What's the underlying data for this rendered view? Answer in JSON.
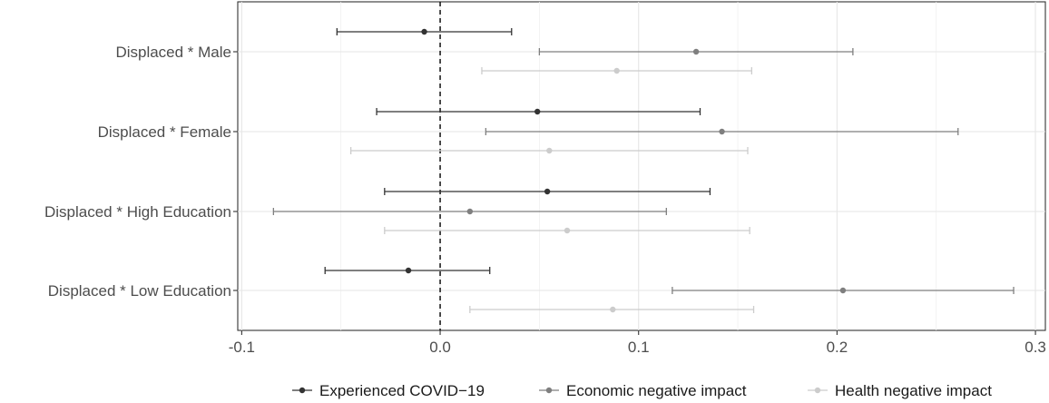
{
  "chart_data": {
    "type": "scatter",
    "orientation": "horizontal-coefficient-plot",
    "categories": [
      "Displaced * Male",
      "Displaced * Female",
      "Displaced * High Education",
      "Displaced * Low Education"
    ],
    "x_ticks": [
      -0.1,
      0,
      0.1,
      0.2,
      0.3
    ],
    "x_tick_labels": [
      "-0.1",
      "0.0",
      "0.1",
      "0.2",
      "0.3"
    ],
    "xlim": [
      -0.102,
      0.305
    ],
    "reference_line_x": 0,
    "grid": true,
    "legend_position": "bottom",
    "series": [
      {
        "name": "Experienced COVID−19",
        "color": "#333333",
        "estimates": [
          -0.008,
          0.049,
          0.054,
          -0.016
        ],
        "ci_low": [
          -0.052,
          -0.032,
          -0.028,
          -0.058
        ],
        "ci_high": [
          0.036,
          0.131,
          0.136,
          0.025
        ]
      },
      {
        "name": "Economic negative impact",
        "color": "#7f7f7f",
        "estimates": [
          0.129,
          0.142,
          0.015,
          0.203
        ],
        "ci_low": [
          0.05,
          0.023,
          -0.084,
          0.117
        ],
        "ci_high": [
          0.208,
          0.261,
          0.114,
          0.289
        ]
      },
      {
        "name": "Health negative impact",
        "color": "#cccccc",
        "estimates": [
          0.089,
          0.055,
          0.064,
          0.087
        ],
        "ci_low": [
          0.021,
          -0.045,
          -0.028,
          0.015
        ],
        "ci_high": [
          0.157,
          0.155,
          0.156,
          0.158
        ]
      }
    ]
  }
}
